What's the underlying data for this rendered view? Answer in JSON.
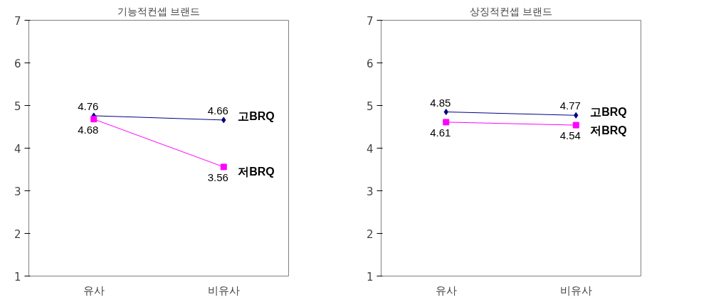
{
  "chart_data": [
    {
      "type": "line",
      "title": "기능적컨셉 브랜드",
      "categories": [
        "유사",
        "비유사"
      ],
      "ylim": [
        1,
        7
      ],
      "yticks": [
        1,
        2,
        3,
        4,
        5,
        6,
        7
      ],
      "grid": false,
      "data_labels": true,
      "series": [
        {
          "name": "고BRQ",
          "color": "#000080",
          "marker": "diamond",
          "values": [
            4.76,
            4.66
          ]
        },
        {
          "name": "저BRQ",
          "color": "#ff00ff",
          "marker": "square",
          "values": [
            4.68,
            3.56
          ]
        }
      ]
    },
    {
      "type": "line",
      "title": "상징적컨셉 브랜드",
      "categories": [
        "유사",
        "비유사"
      ],
      "ylim": [
        1,
        7
      ],
      "yticks": [
        1,
        2,
        3,
        4,
        5,
        6,
        7
      ],
      "grid": false,
      "data_labels": true,
      "series": [
        {
          "name": "고BRQ",
          "color": "#000080",
          "marker": "diamond",
          "values": [
            4.85,
            4.77
          ]
        },
        {
          "name": "저BRQ",
          "color": "#ff00ff",
          "marker": "square",
          "values": [
            4.61,
            4.54
          ]
        }
      ]
    }
  ]
}
